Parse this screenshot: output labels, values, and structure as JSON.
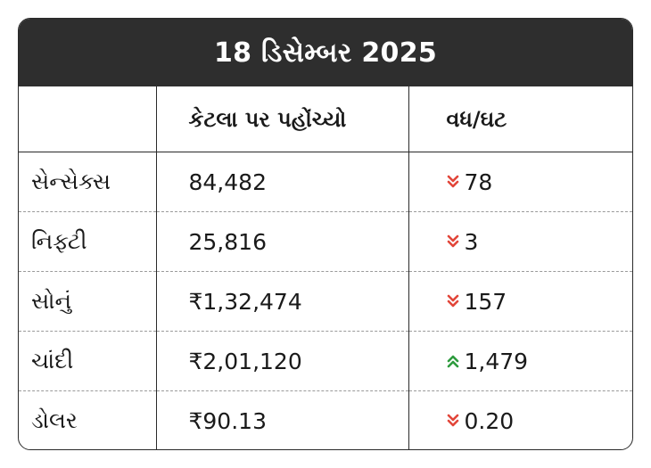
{
  "title": "18 ડિસેમ્બર 2025",
  "headers": [
    "",
    "કેટલા પર પહોંચ્યો",
    "વધ/ઘટ"
  ],
  "colors": {
    "down": "#e2463a",
    "up": "#2e9b3e",
    "title_bg": "#2e2e2e"
  },
  "rows": [
    {
      "name": "સેન્સેક્સ",
      "value": "84,482",
      "change": "78",
      "direction": "down",
      "icon": "double-chevron-down-icon"
    },
    {
      "name": "નિફ્ટી",
      "value": "25,816",
      "change": "3",
      "direction": "down",
      "icon": "double-chevron-down-icon"
    },
    {
      "name": "સોનું",
      "value": "₹1,32,474",
      "change": "157",
      "direction": "down",
      "icon": "double-chevron-down-icon"
    },
    {
      "name": "ચાંદી",
      "value": "₹2,01,120",
      "change": "1,479",
      "direction": "up",
      "icon": "double-chevron-up-icon"
    },
    {
      "name": "ડોલર",
      "value": "₹90.13",
      "change": "0.20",
      "direction": "down",
      "icon": "double-chevron-down-icon"
    }
  ]
}
